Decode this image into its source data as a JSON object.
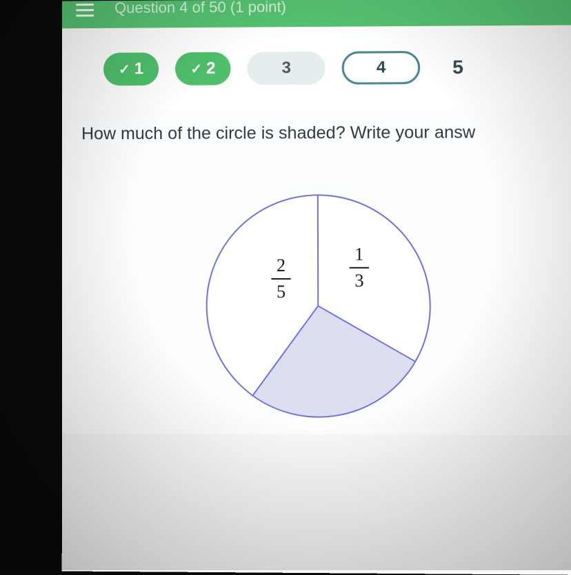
{
  "header": {
    "title": "Question 4 of 50 (1 point)"
  },
  "nav": {
    "items": [
      {
        "label": "1",
        "state": "done"
      },
      {
        "label": "2",
        "state": "done"
      },
      {
        "label": "3",
        "state": "plain"
      },
      {
        "label": "4",
        "state": "current"
      },
      {
        "label": "5",
        "state": "ghost"
      }
    ]
  },
  "content": {
    "question": "How much of the circle is shaded? Write your answ"
  },
  "chart": {
    "type": "pie",
    "radius": 160,
    "stroke_color": "#6f6fd8",
    "stroke_width": 1.8,
    "background_color": "#ffffff",
    "shaded_fill": "#dcdff0",
    "slices": [
      {
        "id": "top_right",
        "fraction_num": 1,
        "fraction_den": 3,
        "start_deg": -90,
        "end_deg": 30,
        "shaded": false
      },
      {
        "id": "shaded",
        "start_deg": 30,
        "end_deg": 126,
        "shaded": true
      },
      {
        "id": "left",
        "fraction_num": 2,
        "fraction_den": 5,
        "start_deg": 126,
        "end_deg": 270,
        "shaded": false
      }
    ],
    "label_fontsize": 26,
    "label_color": "#1a1a1a"
  },
  "colors": {
    "header_bg": "#56c271",
    "done_pill": "#4fbf6b",
    "plain_pill": "#e6edee",
    "current_border": "#4a868f",
    "page_bg": "#f7f9fa"
  }
}
